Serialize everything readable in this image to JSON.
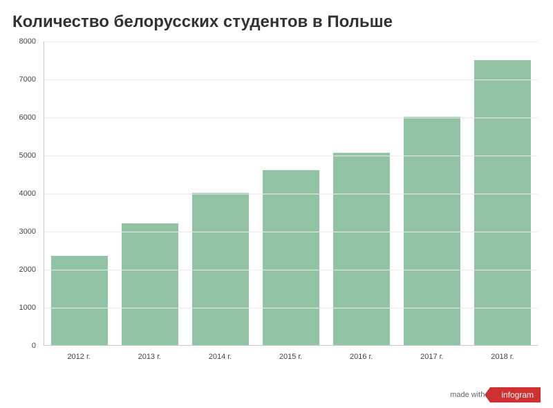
{
  "title": "Количество белорусских студентов в Польше",
  "chart": {
    "type": "bar",
    "categories": [
      "2012 г.",
      "2013 г.",
      "2014 г.",
      "2015 г.",
      "2016 г.",
      "2017 г.",
      "2018 г."
    ],
    "values": [
      2350,
      3200,
      4000,
      4600,
      5050,
      6000,
      7500
    ],
    "bar_color": "#92c3a4",
    "ylim": [
      0,
      8000
    ],
    "ytick_step": 1000,
    "yticks": [
      0,
      1000,
      2000,
      3000,
      4000,
      5000,
      6000,
      7000,
      8000
    ],
    "grid_color": "#ececec",
    "axis_color": "#c9c9c9",
    "background_color": "#ffffff",
    "title_fontsize": 24,
    "label_fontsize": 11,
    "bar_width": 0.8
  },
  "footer": {
    "made_with": "made with",
    "brand": "infogram",
    "brand_bg": "#cf3030",
    "brand_fg": "#ffffff"
  }
}
